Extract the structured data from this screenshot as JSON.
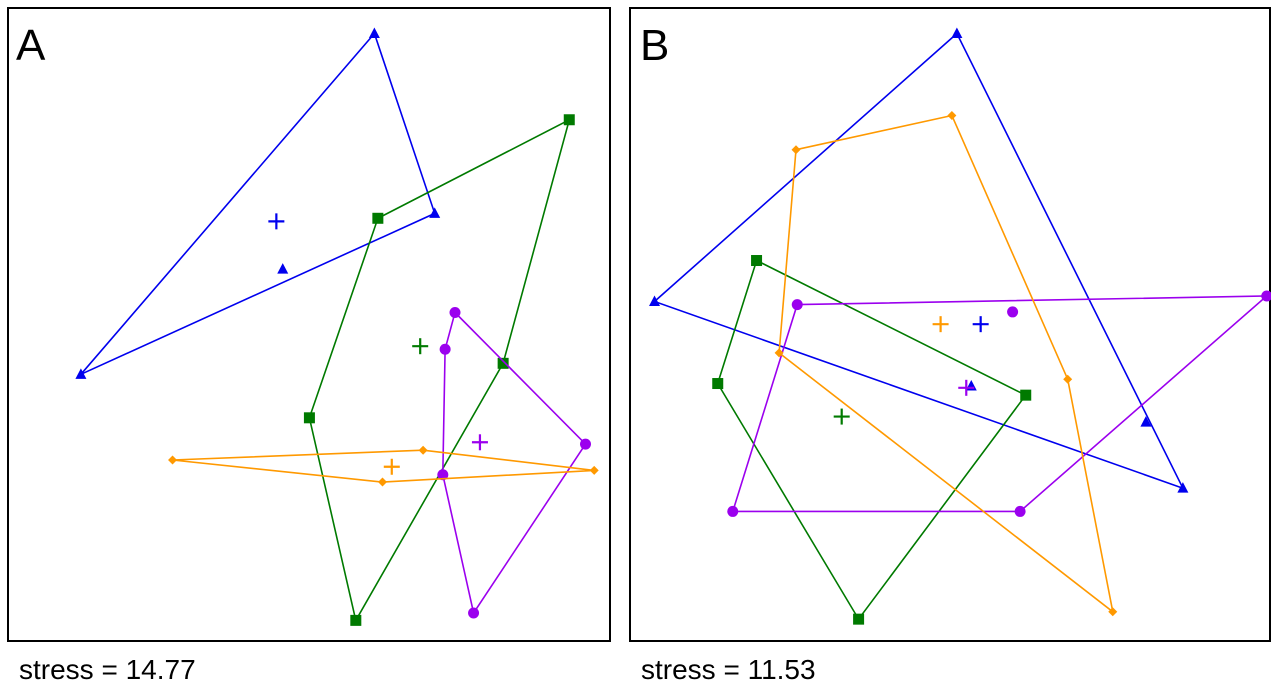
{
  "colors": {
    "blue": "#0000ee",
    "green": "#007a00",
    "purple": "#9b00ee",
    "orange": "#ff9900",
    "frame": "#000000"
  },
  "chart_data": [
    {
      "type": "scatter",
      "panel_label": "A",
      "stress_label": "stress = 14.77",
      "xlim": [
        0,
        100
      ],
      "ylim": [
        0,
        100
      ],
      "grid": false,
      "groups": [
        {
          "color": "blue",
          "marker": "triangle",
          "hull": [
            [
              61.1,
              97.8
            ],
            [
              10.5,
              42.1
            ],
            [
              71.5,
              68.4
            ]
          ],
          "extra": [
            [
              45.3,
              59.3
            ]
          ],
          "centroid": [
            44.2,
            67.1
          ]
        },
        {
          "color": "green",
          "marker": "square",
          "hull": [
            [
              94.7,
              83.7
            ],
            [
              61.7,
              67.6
            ],
            [
              49.9,
              35.0
            ],
            [
              57.9,
              1.9
            ],
            [
              83.3,
              43.9
            ]
          ],
          "extra": [],
          "centroid": [
            69.0,
            46.7
          ]
        },
        {
          "color": "purple",
          "marker": "circle",
          "hull": [
            [
              75.0,
              52.2
            ],
            [
              97.5,
              30.7
            ],
            [
              78.2,
              3.1
            ],
            [
              72.9,
              25.7
            ],
            [
              73.3,
              46.2
            ]
          ],
          "extra": [],
          "centroid": [
            79.3,
            31.0
          ]
        },
        {
          "color": "orange",
          "marker": "diamond",
          "hull": [
            [
              26.3,
              28.1
            ],
            [
              69.5,
              29.7
            ],
            [
              99.0,
              26.4
            ],
            [
              62.5,
              24.5
            ]
          ],
          "extra": [],
          "centroid": [
            64.1,
            27.0
          ]
        }
      ]
    },
    {
      "type": "scatter",
      "panel_label": "B",
      "stress_label": "stress = 11.53",
      "xlim": [
        0,
        100
      ],
      "ylim": [
        0,
        100
      ],
      "grid": false,
      "groups": [
        {
          "color": "blue",
          "marker": "triangle",
          "hull": [
            [
              50.3,
              97.8
            ],
            [
              2.0,
              54.0
            ],
            [
              86.4,
              23.5
            ]
          ],
          "extra": [
            [
              80.5,
              34.3
            ],
            [
              52.6,
              40.2
            ]
          ],
          "centroid": [
            54.1,
            50.3
          ]
        },
        {
          "color": "green",
          "marker": "square",
          "hull": [
            [
              18.3,
              60.7
            ],
            [
              61.3,
              38.7
            ],
            [
              34.6,
              2.1
            ],
            [
              12.1,
              40.6
            ]
          ],
          "extra": [],
          "centroid": [
            31.9,
            35.2
          ]
        },
        {
          "color": "purple",
          "marker": "circle",
          "hull": [
            [
              24.8,
              53.5
            ],
            [
              99.8,
              54.9
            ],
            [
              60.4,
              19.7
            ],
            [
              14.5,
              19.7
            ]
          ],
          "extra": [
            [
              59.2,
              52.3
            ]
          ],
          "centroid": [
            51.8,
            39.9
          ]
        },
        {
          "color": "orange",
          "marker": "diamond",
          "hull": [
            [
              24.6,
              78.8
            ],
            [
              49.5,
              84.4
            ],
            [
              68.0,
              41.3
            ],
            [
              75.2,
              3.3
            ],
            [
              21.9,
              45.6
            ]
          ],
          "extra": [],
          "centroid": [
            47.7,
            50.3
          ]
        }
      ]
    }
  ]
}
